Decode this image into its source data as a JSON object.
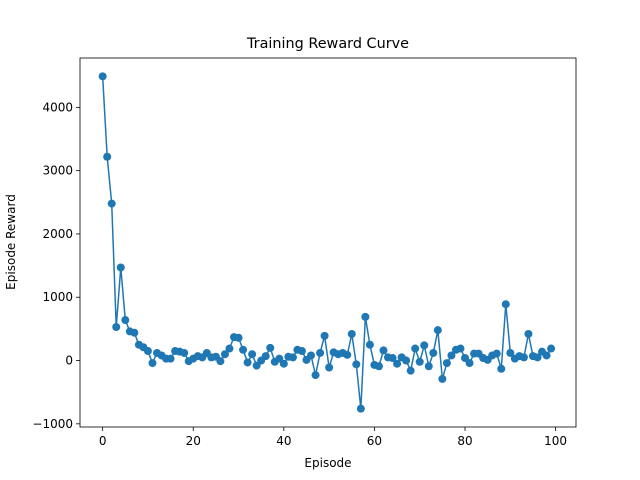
{
  "chart_data": {
    "type": "line",
    "title": "Training Reward Curve",
    "xlabel": "Episode",
    "ylabel": "Episode Reward",
    "xlim": [
      -5,
      104.5
    ],
    "ylim": [
      -1050,
      4780
    ],
    "xticks": [
      0,
      20,
      40,
      60,
      80,
      100
    ],
    "yticks": [
      -1000,
      0,
      1000,
      2000,
      3000,
      4000
    ],
    "xtick_labels": [
      "0",
      "20",
      "40",
      "60",
      "80",
      "100"
    ],
    "ytick_labels": [
      "−1000",
      "0",
      "1000",
      "2000",
      "3000",
      "4000"
    ],
    "grid": false,
    "legend": "none",
    "color": "#1f77b4",
    "marker": "circle",
    "series": [
      {
        "x": [
          0,
          1,
          2,
          3,
          4,
          5,
          6,
          7,
          8,
          9,
          10,
          11,
          12,
          13,
          14,
          15,
          16,
          17,
          18,
          19,
          20,
          21,
          22,
          23,
          24,
          25,
          26,
          27,
          28,
          29,
          30,
          31,
          32,
          33,
          34,
          35,
          36,
          37,
          38,
          39,
          40,
          41,
          42,
          43,
          44,
          45,
          46,
          47,
          48,
          49,
          50,
          51,
          52,
          53,
          54,
          55,
          56,
          57,
          58,
          59,
          60,
          61,
          62,
          63,
          64,
          65,
          66,
          67,
          68,
          69,
          70,
          71,
          72,
          73,
          74,
          75,
          76,
          77,
          78,
          79,
          80,
          81,
          82,
          83,
          84,
          85,
          86,
          87,
          88,
          89,
          90,
          91,
          92,
          93,
          94,
          95,
          96,
          97,
          98,
          99
        ],
        "values": [
          4490,
          3220,
          2480,
          530,
          1470,
          640,
          460,
          440,
          250,
          210,
          150,
          -40,
          120,
          80,
          30,
          30,
          150,
          140,
          120,
          -10,
          30,
          70,
          50,
          120,
          50,
          60,
          -10,
          100,
          190,
          370,
          360,
          170,
          -30,
          100,
          -80,
          0,
          70,
          200,
          -20,
          30,
          -50,
          60,
          50,
          170,
          150,
          10,
          80,
          -230,
          120,
          390,
          -110,
          130,
          100,
          120,
          90,
          420,
          -60,
          -760,
          690,
          250,
          -70,
          -90,
          160,
          50,
          40,
          -50,
          50,
          0,
          -160,
          190,
          -20,
          240,
          -90,
          120,
          480,
          -290,
          -40,
          80,
          170,
          190,
          40,
          -40,
          110,
          110,
          40,
          10,
          80,
          110,
          -130,
          890,
          120,
          30,
          70,
          50,
          420,
          70,
          50,
          140,
          80,
          190
        ]
      }
    ]
  }
}
